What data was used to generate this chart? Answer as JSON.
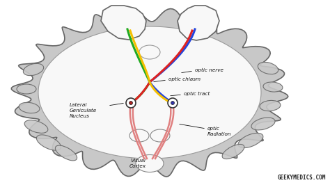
{
  "bg_color": "#ffffff",
  "brain_gray": "#c8c8c8",
  "brain_dark": "#666666",
  "brain_white_inner": "#f8f8f8",
  "watermark": "GEEKYMEDICS.COM",
  "labels": {
    "optic_nerve": "optic nerve",
    "optic_chiasm": "optic chiasm",
    "optic_tract": "optic tract",
    "lateral_geniculate": "Lateral\nGeniculate\nNucleus",
    "optic_radiation": "optic\nRadiation",
    "visual_cortex": "Visual\nCortex"
  },
  "colors": {
    "yellow": "#f5c000",
    "green": "#22aa22",
    "red": "#dd2222",
    "blue": "#2244dd",
    "salmon": "#e08080",
    "text": "#111111"
  }
}
